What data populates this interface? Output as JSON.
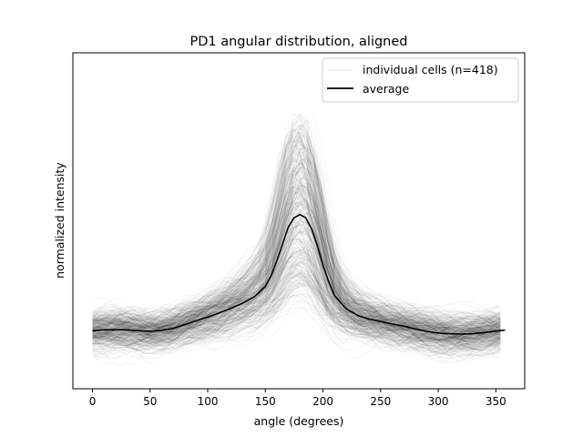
{
  "chart_data": {
    "type": "line",
    "title": "PD1 angular distribution, aligned",
    "xlabel": "angle (degrees)",
    "ylabel": "normalized intensity",
    "xlim": [
      -17,
      375
    ],
    "ylim": [
      -0.1,
      1.0
    ],
    "xticks": [
      0,
      50,
      100,
      150,
      200,
      250,
      300,
      350
    ],
    "yticks_visible": false,
    "grid": false,
    "legend_position": "top-right",
    "legend": [
      {
        "label": "individual cells (n=418)",
        "color": "#000000",
        "alpha": 0.04
      },
      {
        "label": "average",
        "color": "#000000",
        "alpha": 1.0
      }
    ],
    "n_cells": 418,
    "series": [
      {
        "name": "average",
        "color": "#000000",
        "x": [
          0,
          10,
          20,
          30,
          40,
          50,
          60,
          70,
          80,
          90,
          100,
          110,
          120,
          130,
          140,
          150,
          155,
          160,
          165,
          170,
          175,
          180,
          185,
          190,
          195,
          200,
          205,
          210,
          220,
          230,
          240,
          250,
          260,
          270,
          280,
          290,
          300,
          310,
          320,
          330,
          340,
          350,
          358
        ],
        "y": [
          0.09,
          0.093,
          0.094,
          0.093,
          0.09,
          0.088,
          0.091,
          0.098,
          0.11,
          0.123,
          0.135,
          0.148,
          0.163,
          0.18,
          0.2,
          0.235,
          0.27,
          0.32,
          0.375,
          0.43,
          0.46,
          0.47,
          0.46,
          0.425,
          0.37,
          0.305,
          0.25,
          0.205,
          0.162,
          0.14,
          0.128,
          0.12,
          0.112,
          0.105,
          0.096,
          0.088,
          0.082,
          0.08,
          0.079,
          0.08,
          0.084,
          0.089,
          0.092
        ]
      }
    ]
  }
}
